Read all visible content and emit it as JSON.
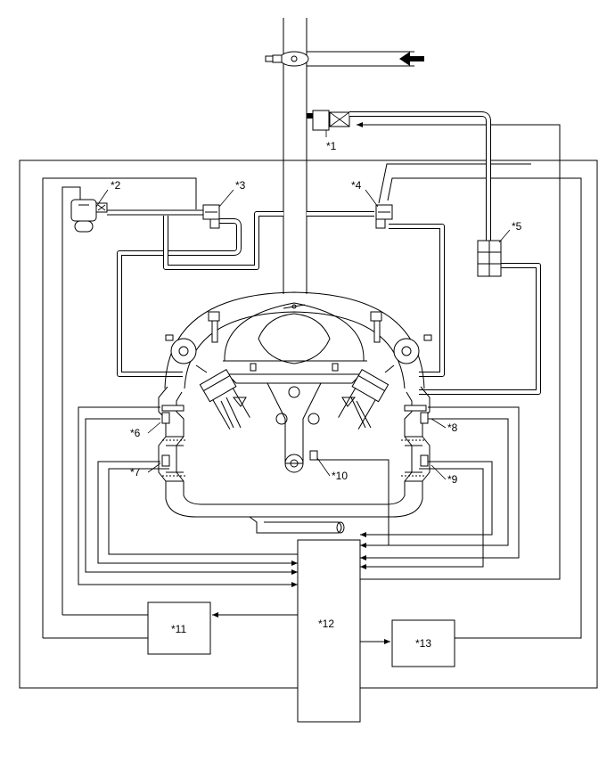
{
  "labels": {
    "c1": "*1",
    "c2": "*2",
    "c3": "*3",
    "c4": "*4",
    "c5": "*5",
    "c6": "*6",
    "c7": "*7",
    "c8": "*8",
    "c9": "*9",
    "c10": "*10",
    "c11": "*11",
    "c12": "*12",
    "c13": "*13"
  }
}
